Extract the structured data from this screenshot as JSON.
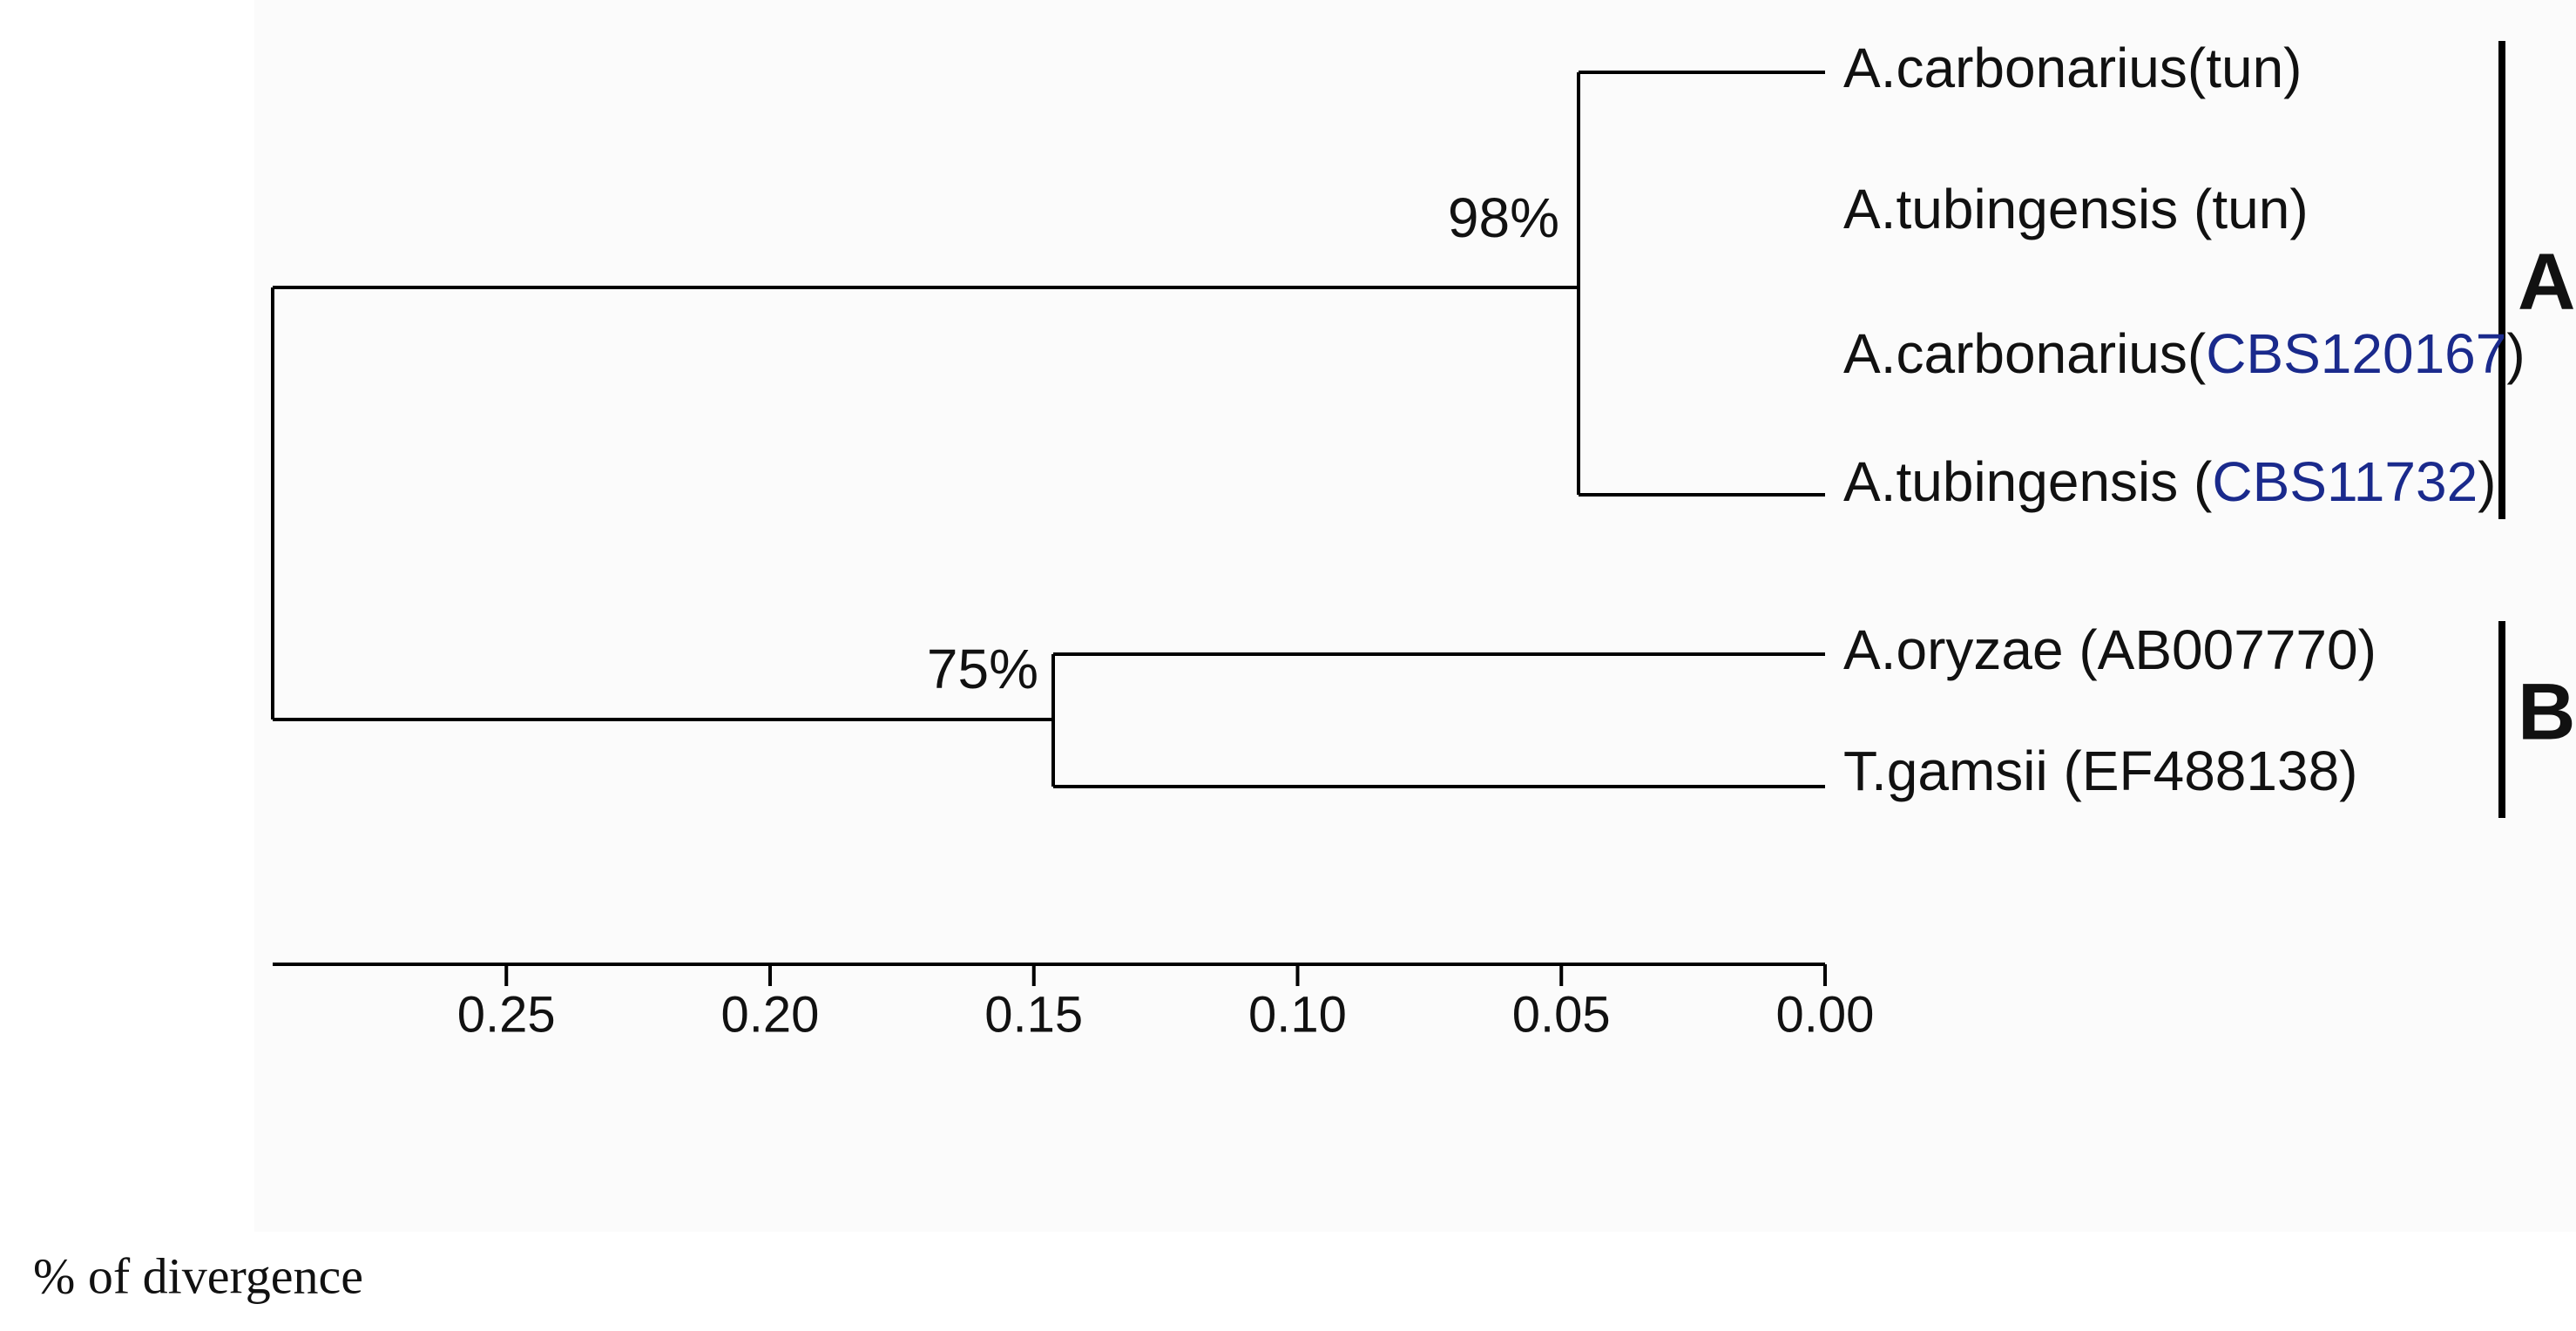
{
  "tree": {
    "leaves": [
      [
        "A.carbonarius(tun)"
      ],
      [
        "A.tubingensis (tun)"
      ],
      [
        "A.carbonarius(",
        "CBS120167",
        ")"
      ],
      [
        "A.tubingensis (",
        "CBS11732",
        ")"
      ],
      [
        "A.oryzae (AB007770)"
      ],
      [
        "T.gamsii (EF488138)"
      ]
    ],
    "support": [
      "98%",
      "75%"
    ],
    "groups": [
      "A",
      "B"
    ]
  },
  "scale": {
    "ticks": [
      {
        "value": 0.25,
        "label": "0.25"
      },
      {
        "value": 0.2,
        "label": "0.20"
      },
      {
        "value": 0.15,
        "label": "0.15"
      },
      {
        "value": 0.1,
        "label": "0.10"
      },
      {
        "value": 0.05,
        "label": "0.05"
      },
      {
        "value": 0,
        "label": "0.00"
      }
    ],
    "label": "% of divergence"
  }
}
